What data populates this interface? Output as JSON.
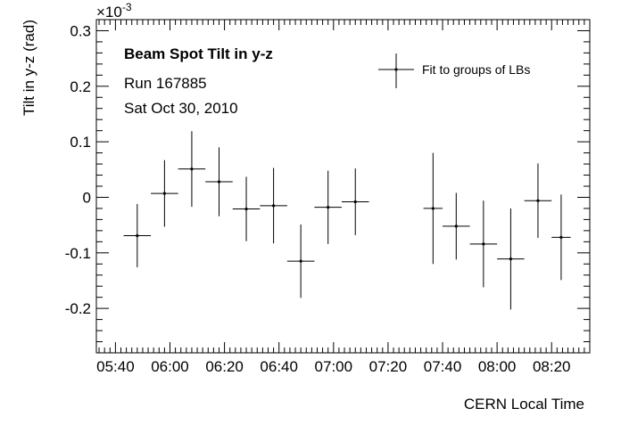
{
  "chart_data": {
    "type": "scatter",
    "title": "Beam Spot Tilt in y-z",
    "subtitle_lines": [
      "Run 167885",
      "Sat Oct 30, 2010"
    ],
    "xlabel": "CERN Local Time",
    "ylabel": "Tilt in y-z (rad)",
    "y_multiplier": "×10",
    "y_multiplier_exponent": "-3",
    "x_ticks": [
      "05:40",
      "06:00",
      "06:20",
      "06:40",
      "07:00",
      "07:20",
      "07:40",
      "08:00",
      "08:20"
    ],
    "y_ticks": [
      "-0.2",
      "-0.1",
      "0",
      "0.1",
      "0.2",
      "0.3"
    ],
    "xlim": [
      "05:33",
      "08:34"
    ],
    "ylim": [
      -0.28,
      0.32
    ],
    "grid": false,
    "legend_position": "top-right",
    "series": [
      {
        "name": "Fit to groups of LBs",
        "points": [
          {
            "x_start": "05:43",
            "x_end": "05:53",
            "y": -0.069,
            "yerr": 0.057
          },
          {
            "x_start": "05:53",
            "x_end": "06:03",
            "y": 0.007,
            "yerr": 0.06
          },
          {
            "x_start": "06:03",
            "x_end": "06:13",
            "y": 0.051,
            "yerr": 0.068
          },
          {
            "x_start": "06:13",
            "x_end": "06:23",
            "y": 0.028,
            "yerr": 0.062
          },
          {
            "x_start": "06:23",
            "x_end": "06:33",
            "y": -0.021,
            "yerr": 0.058
          },
          {
            "x_start": "06:33",
            "x_end": "06:43",
            "y": -0.015,
            "yerr": 0.068
          },
          {
            "x_start": "06:43",
            "x_end": "06:53",
            "y": -0.115,
            "yerr": 0.066
          },
          {
            "x_start": "06:53",
            "x_end": "07:03",
            "y": -0.018,
            "yerr": 0.066
          },
          {
            "x_start": "07:03",
            "x_end": "07:13",
            "y": -0.008,
            "yerr": 0.06
          },
          {
            "x_start": "07:33",
            "x_end": "07:40",
            "y": -0.02,
            "yerr": 0.1
          },
          {
            "x_start": "07:40",
            "x_end": "07:50",
            "y": -0.052,
            "yerr": 0.06
          },
          {
            "x_start": "07:50",
            "x_end": "08:00",
            "y": -0.084,
            "yerr": 0.078
          },
          {
            "x_start": "08:00",
            "x_end": "08:10",
            "y": -0.111,
            "yerr": 0.091
          },
          {
            "x_start": "08:10",
            "x_end": "08:20",
            "y": -0.006,
            "yerr": 0.067
          },
          {
            "x_start": "08:20",
            "x_end": "08:27",
            "y": -0.072,
            "yerr": 0.077
          }
        ]
      }
    ]
  }
}
